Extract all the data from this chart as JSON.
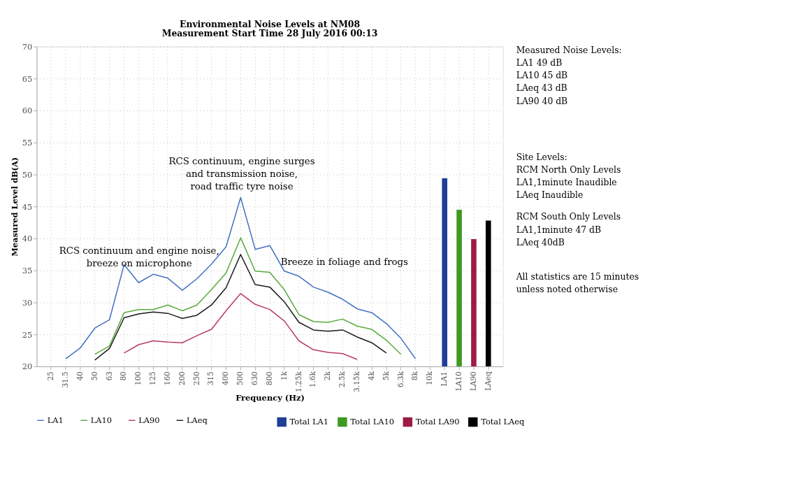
{
  "chart_data": {
    "type": "line",
    "title": "Environmental Noise Levels at NM08",
    "subtitle": "Measurement Start Time 28 July 2016 00:13",
    "xlabel": "Frequency (Hz)",
    "ylabel": "Measured Level dB(A)",
    "categories": [
      "25",
      "31.5",
      "40",
      "50",
      "63",
      "80",
      "100",
      "125",
      "160",
      "200",
      "250",
      "315",
      "400",
      "500",
      "630",
      "800",
      "1k",
      "1.25k",
      "1.6k",
      "2k",
      "2.5k",
      "3.15k",
      "4k",
      "5k",
      "6.3k",
      "8k",
      "10k",
      "LA1",
      "LA10",
      "LA90",
      "LAeq"
    ],
    "series": [
      {
        "name": "LA1",
        "color": "#4472c4",
        "values": [
          null,
          21.2,
          22.9,
          26.0,
          27.3,
          35.9,
          33.1,
          34.4,
          33.8,
          31.9,
          33.7,
          36.0,
          38.7,
          46.4,
          38.3,
          38.9,
          34.9,
          34.1,
          32.4,
          31.6,
          30.5,
          29.0,
          28.4,
          26.7,
          24.4,
          21.2,
          null,
          null,
          null,
          null,
          null
        ]
      },
      {
        "name": "LA10",
        "color": "#5aaa3c",
        "values": [
          null,
          null,
          null,
          21.9,
          23.2,
          28.4,
          28.9,
          28.9,
          29.6,
          28.7,
          29.6,
          32.0,
          34.6,
          40.1,
          34.9,
          34.7,
          32.0,
          28.1,
          27.0,
          26.9,
          27.4,
          26.3,
          25.8,
          24.1,
          21.9,
          null,
          null,
          null,
          null,
          null,
          null
        ]
      },
      {
        "name": "LA90",
        "color": "#b83c64",
        "values": [
          null,
          null,
          null,
          null,
          null,
          22.1,
          23.4,
          24.0,
          23.8,
          23.7,
          24.8,
          25.8,
          28.7,
          31.4,
          29.7,
          28.9,
          27.1,
          24.0,
          22.6,
          22.2,
          22.0,
          21.1,
          null,
          null,
          null,
          null,
          null,
          null,
          null,
          null,
          null
        ]
      },
      {
        "name": "LAeq",
        "color": "#1a1a1a",
        "values": [
          null,
          null,
          null,
          21.0,
          22.8,
          27.6,
          28.2,
          28.5,
          28.3,
          27.5,
          28.0,
          29.6,
          32.3,
          37.5,
          32.8,
          32.4,
          30.1,
          26.9,
          25.7,
          25.5,
          25.7,
          24.6,
          23.7,
          22.1,
          null,
          null,
          null,
          null,
          null,
          null,
          null
        ]
      },
      {
        "name": "Total LA1",
        "type": "bar",
        "color": "#1f3f96",
        "values": [
          null,
          null,
          null,
          null,
          null,
          null,
          null,
          null,
          null,
          null,
          null,
          null,
          null,
          null,
          null,
          null,
          null,
          null,
          null,
          null,
          null,
          null,
          null,
          null,
          null,
          null,
          null,
          49.4,
          null,
          null,
          null
        ]
      },
      {
        "name": "Total LA10",
        "type": "bar",
        "color": "#3f9a22",
        "values": [
          null,
          null,
          null,
          null,
          null,
          null,
          null,
          null,
          null,
          null,
          null,
          null,
          null,
          null,
          null,
          null,
          null,
          null,
          null,
          null,
          null,
          null,
          null,
          null,
          null,
          null,
          null,
          null,
          44.5,
          null,
          null
        ]
      },
      {
        "name": "Total LA90",
        "type": "bar",
        "color": "#9e1c44",
        "values": [
          null,
          null,
          null,
          null,
          null,
          null,
          null,
          null,
          null,
          null,
          null,
          null,
          null,
          null,
          null,
          null,
          null,
          null,
          null,
          null,
          null,
          null,
          null,
          null,
          null,
          null,
          null,
          null,
          null,
          39.9,
          null
        ]
      },
      {
        "name": "Total LAeq",
        "type": "bar",
        "color": "#000000",
        "values": [
          null,
          null,
          null,
          null,
          null,
          null,
          null,
          null,
          null,
          null,
          null,
          null,
          null,
          null,
          null,
          null,
          null,
          null,
          null,
          null,
          null,
          null,
          null,
          null,
          null,
          null,
          null,
          null,
          null,
          null,
          42.8
        ]
      }
    ],
    "ylim": [
      20,
      70
    ],
    "yticks": [
      20,
      25,
      30,
      35,
      40,
      45,
      50,
      55,
      60,
      65,
      70
    ],
    "grid": true,
    "legend": "bottom",
    "marker": "none",
    "line_style": "solid",
    "annotations": [
      "RCS continuum and engine noise,\nbreeze on microphone",
      "RCS continuum, engine surges\nand transmission noise,\nroad traffic tyre noise",
      "Breeze in foliage and frogs",
      "Measured Noise Levels:\nLA1 49 dB\nLA10 45 dB\nLAeq 43 dB\nLA90 40 dB",
      "Site Levels:\nRCM North Only Levels\nLA1,1minute Inaudible\nLAeq Inaudible",
      "RCM South Only Levels\nLA1,1minute 47 dB\nLAeq 40dB",
      "All statistics are 15 minutes\nunless noted otherwise"
    ]
  }
}
